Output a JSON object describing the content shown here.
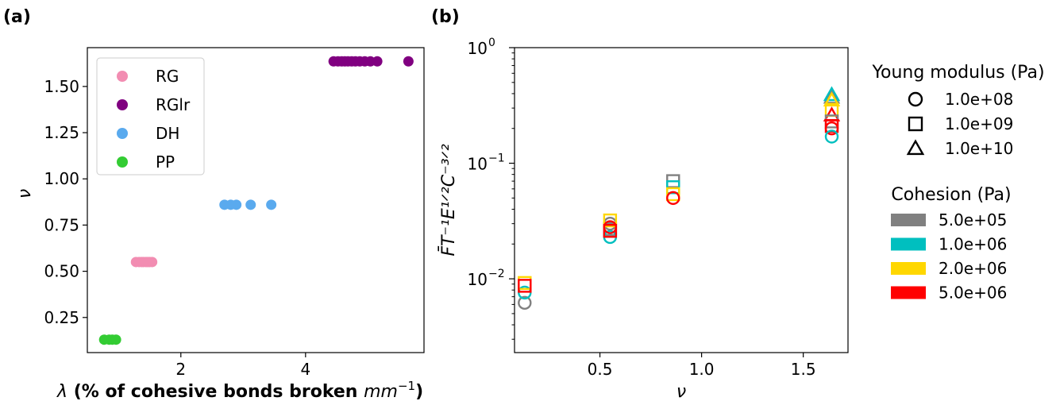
{
  "chart_data": [
    {
      "panel": "(a)",
      "type": "scatter",
      "xlabel_prefix": "λ",
      "xlabel_main": " (% of cohesive bonds broken ",
      "xlabel_unit": "mm",
      "xlabel_exp": "−1",
      "xlabel_suffix": ")",
      "ylabel": "ν",
      "xlim": [
        0.5,
        5.9
      ],
      "ylim": [
        0.06,
        1.71
      ],
      "xticks": [
        2,
        4
      ],
      "yticks": [
        0.25,
        0.5,
        0.75,
        1.0,
        1.25,
        1.5
      ],
      "ytick_labels": [
        "0.25",
        "0.50",
        "0.75",
        "1.00",
        "1.25",
        "1.50"
      ],
      "legend_position": "upper-left",
      "series": [
        {
          "name": "RG",
          "color": "#f28db2",
          "y": 0.55,
          "x": [
            1.28,
            1.33,
            1.37,
            1.4,
            1.44,
            1.47,
            1.5,
            1.54
          ]
        },
        {
          "name": "RGlr",
          "color": "#800080",
          "y": 1.636,
          "x": [
            4.45,
            4.52,
            4.58,
            4.63,
            4.68,
            4.74,
            4.8,
            4.87,
            4.95,
            5.04,
            5.15,
            5.65
          ]
        },
        {
          "name": "DH",
          "color": "#5aaaee",
          "y": 0.86,
          "x": [
            2.7,
            2.8,
            2.89,
            3.12,
            3.45
          ]
        },
        {
          "name": "PP",
          "color": "#33cc33",
          "y": 0.13,
          "x": [
            0.77,
            0.85,
            0.9,
            0.96
          ]
        }
      ]
    },
    {
      "panel": "(b)",
      "type": "scatter",
      "xlabel": "ν",
      "ylabel": "F̄T⁻¹E¹ᐟ²C⁻³ᐟ²",
      "yscale": "log",
      "xlim": [
        0.08,
        1.72
      ],
      "ylim": [
        0.0023,
        1.0
      ],
      "xticks": [
        0.5,
        1.0,
        1.5
      ],
      "xtick_labels": [
        "0.5",
        "1.0",
        "1.5"
      ],
      "ytick_base": "10",
      "ytick_exponents": [
        "−2",
        "−1",
        "0"
      ],
      "ytick_values": [
        0.01,
        0.1,
        1.0
      ],
      "legend_position": "outside-right",
      "marker_legend_title": "Young modulus (Pa)",
      "marker_legend": [
        {
          "shape": "circle",
          "label": "1.0e+08"
        },
        {
          "shape": "square",
          "label": "1.0e+09"
        },
        {
          "shape": "triangle",
          "label": "1.0e+10"
        }
      ],
      "color_legend_title": "Cohesion (Pa)",
      "color_legend": [
        {
          "label": "5.0e+05",
          "color": "#808080"
        },
        {
          "label": "1.0e+06",
          "color": "#00bfbf"
        },
        {
          "label": "2.0e+06",
          "color": "#ffd700"
        },
        {
          "label": "5.0e+06",
          "color": "#ff0000"
        }
      ],
      "points": [
        {
          "x": 0.13,
          "y": 0.0062,
          "shape": "circle",
          "color": "#808080"
        },
        {
          "x": 0.13,
          "y": 0.0076,
          "shape": "circle",
          "color": "#00bfbf"
        },
        {
          "x": 0.13,
          "y": 0.0092,
          "shape": "square",
          "color": "#ffd700"
        },
        {
          "x": 0.13,
          "y": 0.0087,
          "shape": "square",
          "color": "#ff0000"
        },
        {
          "x": 0.55,
          "y": 0.03,
          "shape": "circle",
          "color": "#808080"
        },
        {
          "x": 0.55,
          "y": 0.027,
          "shape": "square",
          "color": "#808080"
        },
        {
          "x": 0.55,
          "y": 0.023,
          "shape": "circle",
          "color": "#00bfbf"
        },
        {
          "x": 0.55,
          "y": 0.026,
          "shape": "square",
          "color": "#00bfbf"
        },
        {
          "x": 0.55,
          "y": 0.032,
          "shape": "square",
          "color": "#ffd700"
        },
        {
          "x": 0.55,
          "y": 0.028,
          "shape": "circle",
          "color": "#ff0000"
        },
        {
          "x": 0.55,
          "y": 0.026,
          "shape": "square",
          "color": "#ff0000"
        },
        {
          "x": 0.86,
          "y": 0.07,
          "shape": "square",
          "color": "#808080"
        },
        {
          "x": 0.86,
          "y": 0.062,
          "shape": "square",
          "color": "#00bfbf"
        },
        {
          "x": 0.86,
          "y": 0.054,
          "shape": "square",
          "color": "#ffd700"
        },
        {
          "x": 0.86,
          "y": 0.05,
          "shape": "circle",
          "color": "#ff0000"
        },
        {
          "x": 1.64,
          "y": 0.37,
          "shape": "triangle",
          "color": "#808080"
        },
        {
          "x": 1.64,
          "y": 0.39,
          "shape": "triangle",
          "color": "#00bfbf"
        },
        {
          "x": 1.64,
          "y": 0.35,
          "shape": "triangle",
          "color": "#ffd700"
        },
        {
          "x": 1.64,
          "y": 0.26,
          "shape": "triangle",
          "color": "#ff0000"
        },
        {
          "x": 1.64,
          "y": 0.29,
          "shape": "square",
          "color": "#ffd700"
        },
        {
          "x": 1.64,
          "y": 0.23,
          "shape": "square",
          "color": "#808080"
        },
        {
          "x": 1.64,
          "y": 0.21,
          "shape": "square",
          "color": "#ff0000"
        },
        {
          "x": 1.64,
          "y": 0.2,
          "shape": "circle",
          "color": "#ff0000"
        },
        {
          "x": 1.64,
          "y": 0.17,
          "shape": "circle",
          "color": "#00bfbf"
        }
      ]
    }
  ]
}
